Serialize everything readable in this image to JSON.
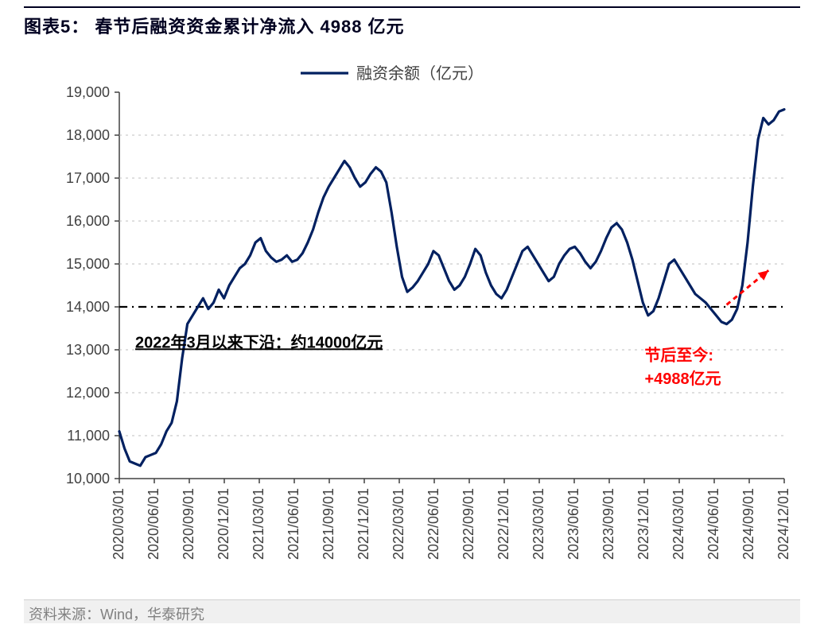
{
  "chart": {
    "type": "line",
    "title_prefix": "图表5：",
    "title": "春节后融资资金累计净流入 4988 亿元",
    "title_fontsize": 22,
    "title_color": "#000020",
    "legendLabel": "融资余额（亿元）",
    "legend_fontsize": 20,
    "line_color": "#002060",
    "line_width": 3.2,
    "background_color": "#ffffff",
    "grid_color": "#bfbfbf",
    "axis_color": "#404040",
    "tick_color": "#404040",
    "axis_label_color": "#404040",
    "axis_label_fontsize": 18,
    "ylim": [
      10000,
      19000
    ],
    "ytick_step": 1000,
    "x_labels": [
      "2020/03/01",
      "2020/06/01",
      "2020/09/01",
      "2020/12/01",
      "2021/03/01",
      "2021/06/01",
      "2021/09/01",
      "2021/12/01",
      "2022/03/01",
      "2022/06/01",
      "2022/09/01",
      "2022/12/01",
      "2023/03/01",
      "2023/06/01",
      "2023/09/01",
      "2023/12/01",
      "2024/03/01",
      "2024/06/01",
      "2024/09/01",
      "2024/12/01"
    ],
    "series": [
      11100,
      10700,
      10400,
      10350,
      10300,
      10500,
      10550,
      10600,
      10800,
      11100,
      11300,
      11800,
      12800,
      13600,
      13800,
      14000,
      14200,
      13950,
      14100,
      14400,
      14200,
      14500,
      14700,
      14900,
      15000,
      15200,
      15500,
      15600,
      15300,
      15150,
      15050,
      15100,
      15200,
      15050,
      15100,
      15250,
      15500,
      15800,
      16200,
      16550,
      16800,
      17000,
      17200,
      17400,
      17250,
      17000,
      16800,
      16900,
      17100,
      17250,
      17150,
      16900,
      16200,
      15400,
      14700,
      14350,
      14450,
      14600,
      14800,
      15000,
      15300,
      15200,
      14900,
      14600,
      14400,
      14500,
      14700,
      15000,
      15350,
      15200,
      14800,
      14500,
      14300,
      14200,
      14400,
      14700,
      15000,
      15300,
      15400,
      15200,
      15000,
      14800,
      14600,
      14700,
      15000,
      15200,
      15350,
      15400,
      15250,
      15050,
      14900,
      15050,
      15300,
      15600,
      15850,
      15950,
      15800,
      15500,
      15100,
      14600,
      14100,
      13800,
      13900,
      14200,
      14600,
      15000,
      15100,
      14900,
      14700,
      14500,
      14300,
      14200,
      14100,
      13950,
      13800,
      13650,
      13600,
      13700,
      13950,
      14500,
      15500,
      16800,
      17900,
      18400,
      18250,
      18350,
      18550,
      18600
    ],
    "reference_line": {
      "y": 14000,
      "color": "#000000",
      "dash": "10 6 2 6",
      "width": 2.2
    },
    "annotation_black": {
      "text": "2022年3月以来下沿：约14000亿元",
      "color": "#000000",
      "fontsize": 20,
      "font_weight": "bold",
      "underline": true
    },
    "annotation_red": {
      "line1": "节后至今:",
      "line2": "+4988亿元",
      "color": "#ff0000",
      "fontsize": 20,
      "font_weight": "bold"
    },
    "arrow": {
      "color": "#ff0000",
      "dash": "6 5",
      "width": 3
    }
  },
  "source_label": "资料来源：Wind，华泰研究"
}
